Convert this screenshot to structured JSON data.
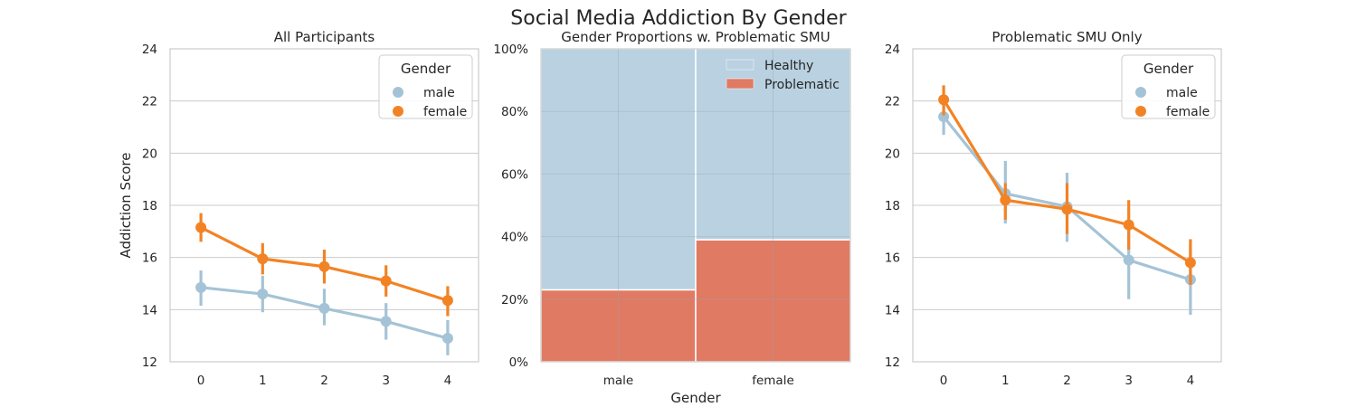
{
  "title": "Social Media Addiction By Gender",
  "colors": {
    "male": "#a5c3d6",
    "female": "#f28325",
    "healthy": "#b9d1e0",
    "problematic": "#e07a63",
    "grid": "#cccccc",
    "spine": "#cccccc",
    "bar_edge": "#ffffff"
  },
  "chart_data": [
    {
      "type": "line",
      "title": "All Participants",
      "xlabel": "",
      "ylabel": "Addiction Score",
      "categories": [
        "0",
        "1",
        "2",
        "3",
        "4"
      ],
      "ylim": [
        12,
        24
      ],
      "yticks": [
        "12",
        "14",
        "16",
        "18",
        "20",
        "22",
        "24"
      ],
      "grid": "y",
      "legend": {
        "title": "Gender",
        "position": "top-right"
      },
      "series": [
        {
          "name": "male",
          "values": [
            14.85,
            14.6,
            14.05,
            13.55,
            12.9
          ],
          "ci_low": [
            14.15,
            13.9,
            13.4,
            12.85,
            12.25
          ],
          "ci_high": [
            15.5,
            15.3,
            14.8,
            14.25,
            13.6
          ]
        },
        {
          "name": "female",
          "values": [
            17.15,
            15.95,
            15.65,
            15.1,
            14.35
          ],
          "ci_low": [
            16.6,
            15.35,
            15.0,
            14.5,
            13.75
          ],
          "ci_high": [
            17.7,
            16.55,
            16.3,
            15.7,
            14.9
          ]
        }
      ]
    },
    {
      "type": "bar",
      "stacked": true,
      "title": "Gender Proportions w. Problematic SMU",
      "xlabel": "Gender",
      "ylabel": "",
      "categories": [
        "male",
        "female"
      ],
      "ylim": [
        0,
        1
      ],
      "yticks": [
        "0%",
        "20%",
        "40%",
        "60%",
        "80%",
        "100%"
      ],
      "grid": "both",
      "legend": {
        "title": "",
        "position": "top-right"
      },
      "series": [
        {
          "name": "Healthy",
          "values": [
            0.77,
            0.61
          ]
        },
        {
          "name": "Problematic",
          "values": [
            0.23,
            0.39
          ]
        }
      ]
    },
    {
      "type": "line",
      "title": "Problematic SMU Only",
      "xlabel": "",
      "ylabel": "",
      "categories": [
        "0",
        "1",
        "2",
        "3",
        "4"
      ],
      "ylim": [
        12,
        24
      ],
      "yticks": [
        "12",
        "14",
        "16",
        "18",
        "20",
        "22",
        "24"
      ],
      "grid": "y",
      "legend": {
        "title": "Gender",
        "position": "top-right"
      },
      "series": [
        {
          "name": "male",
          "values": [
            21.4,
            18.45,
            17.95,
            15.9,
            15.15
          ],
          "ci_low": [
            20.7,
            17.3,
            16.6,
            14.4,
            13.8
          ],
          "ci_high": [
            22.1,
            19.7,
            19.25,
            17.4,
            16.5
          ]
        },
        {
          "name": "female",
          "values": [
            22.05,
            18.2,
            17.85,
            17.25,
            15.8
          ],
          "ci_low": [
            21.45,
            17.45,
            16.9,
            16.3,
            14.95
          ],
          "ci_high": [
            22.6,
            18.85,
            18.85,
            18.2,
            16.7
          ]
        }
      ]
    }
  ]
}
